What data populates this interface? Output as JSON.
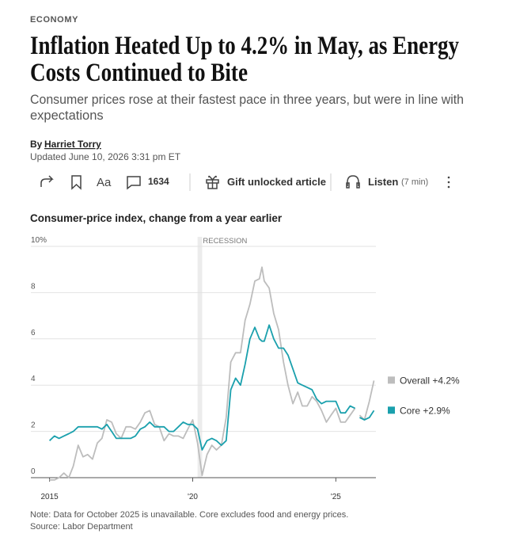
{
  "section": "ECONOMY",
  "headline_lines": [
    "Inflation Heated Up to 4.2% in May, as Energy",
    "Costs Continued to Bite"
  ],
  "subtitle_lines": [
    "Consumer prices rose at their fastest pace in three years, but were in line with",
    "expectations"
  ],
  "byline_prefix": "By",
  "author": "Harriet Torry",
  "updated": "Updated June 10, 2026 3:31 pm ET",
  "toolbar": {
    "text_size": "Aa",
    "comments": "1634",
    "gift": "Gift unlocked article",
    "listen": "Listen",
    "duration": "(7 min)"
  },
  "chart_data": {
    "type": "line",
    "title": "Consumer-price index, change from a year earlier",
    "x": [
      2015,
      2015.17,
      2015.33,
      2015.5,
      2015.67,
      2015.83,
      2016,
      2016.17,
      2016.33,
      2016.5,
      2016.67,
      2016.83,
      2017,
      2017.17,
      2017.33,
      2017.5,
      2017.67,
      2017.83,
      2018,
      2018.17,
      2018.33,
      2018.5,
      2018.67,
      2018.83,
      2019,
      2019.17,
      2019.33,
      2019.5,
      2019.67,
      2019.83,
      2020,
      2020.17,
      2020.33,
      2020.5,
      2020.67,
      2020.83,
      2021,
      2021.17,
      2021.33,
      2021.5,
      2021.67,
      2021.83,
      2022,
      2022.17,
      2022.33,
      2022.42,
      2022.5,
      2022.67,
      2022.83,
      2023,
      2023.17,
      2023.33,
      2023.5,
      2023.67,
      2023.83,
      2024,
      2024.17,
      2024.33,
      2024.5,
      2024.67,
      2024.83,
      2025,
      2025.17,
      2025.33,
      2025.5,
      2025.67,
      2025.75,
      2025.83,
      2026,
      2026.17,
      2026.33
    ],
    "series": [
      {
        "name": "Overall +4.2%",
        "color": "#bdbdbd",
        "values": [
          -0.1,
          -0.1,
          0.0,
          0.2,
          0.0,
          0.5,
          1.4,
          0.9,
          1.0,
          0.8,
          1.5,
          1.7,
          2.5,
          2.4,
          1.9,
          1.7,
          2.2,
          2.2,
          2.1,
          2.4,
          2.8,
          2.9,
          2.3,
          2.2,
          1.6,
          1.9,
          1.8,
          1.8,
          1.7,
          2.1,
          2.5,
          1.5,
          0.1,
          1.0,
          1.4,
          1.2,
          1.4,
          2.6,
          5.0,
          5.4,
          5.4,
          6.8,
          7.5,
          8.5,
          8.6,
          9.1,
          8.5,
          8.2,
          7.1,
          6.4,
          5.0,
          4.0,
          3.2,
          3.7,
          3.1,
          3.1,
          3.5,
          3.3,
          2.9,
          2.4,
          2.7,
          3.0,
          2.4,
          2.4,
          2.7,
          3.0,
          null,
          2.7,
          2.5,
          3.3,
          4.2
        ]
      },
      {
        "name": "Core +2.9%",
        "color": "#1aa0ad",
        "values": [
          1.6,
          1.8,
          1.7,
          1.8,
          1.9,
          2.0,
          2.2,
          2.2,
          2.2,
          2.2,
          2.2,
          2.1,
          2.3,
          2.0,
          1.7,
          1.7,
          1.7,
          1.7,
          1.8,
          2.1,
          2.2,
          2.4,
          2.2,
          2.2,
          2.2,
          2.0,
          2.0,
          2.2,
          2.4,
          2.3,
          2.3,
          2.1,
          1.2,
          1.6,
          1.7,
          1.6,
          1.4,
          1.6,
          3.8,
          4.3,
          4.0,
          4.9,
          6.0,
          6.5,
          6.0,
          5.9,
          5.9,
          6.6,
          6.0,
          5.6,
          5.6,
          5.3,
          4.7,
          4.1,
          4.0,
          3.9,
          3.8,
          3.4,
          3.2,
          3.3,
          3.3,
          3.3,
          2.8,
          2.8,
          3.1,
          3.0,
          null,
          2.6,
          2.5,
          2.6,
          2.9
        ]
      }
    ],
    "xlim": [
      2014.9,
      2026.4
    ],
    "xticks": [
      2015,
      {
        "value": 2020,
        "label": "'20"
      },
      {
        "value": 2025,
        "label": "'25"
      }
    ],
    "ylim": [
      0,
      10
    ],
    "yticks": [
      0,
      2,
      4,
      6,
      8,
      {
        "value": 10,
        "label": "10%"
      }
    ],
    "grid": true,
    "legend": "right",
    "recession": {
      "label": "RECESSION",
      "x0": 2020.17,
      "x1": 2020.33
    },
    "note": "Note: Data for October 2025 is unavailable. Core excludes food and energy prices.",
    "source": "Source: Labor Department"
  }
}
